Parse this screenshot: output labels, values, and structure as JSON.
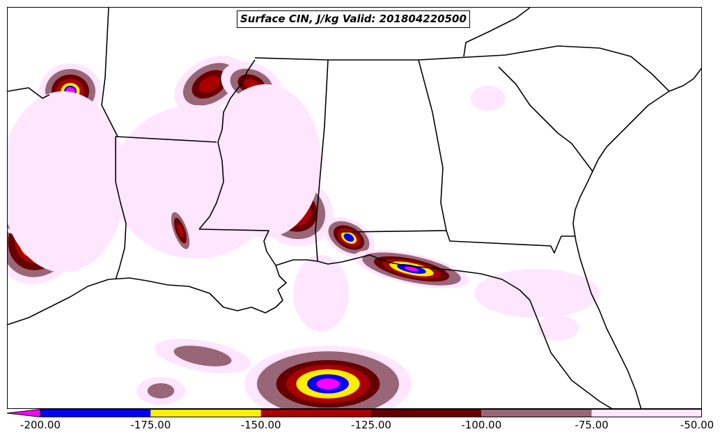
{
  "title": "Surface CIN, J/kg Valid: 201804220500",
  "colorbar": {
    "ticks": [
      "-200.00",
      "-175.00",
      "-150.00",
      "-125.00",
      "-100.00",
      "-75.00",
      "-50.00"
    ],
    "bins": [
      {
        "from": -200,
        "to": -175,
        "color": "#0000ff"
      },
      {
        "from": -175,
        "to": -150,
        "color": "#ffee00"
      },
      {
        "from": -150,
        "to": -125,
        "color": "#aa0000"
      },
      {
        "from": -125,
        "to": -100,
        "color": "#660000"
      },
      {
        "from": -100,
        "to": -75,
        "color": "#996677"
      },
      {
        "from": -75,
        "to": -50,
        "color": "#ffe6ff"
      }
    ],
    "under_color": "#ff00ff"
  },
  "colors": {
    "magenta": "#ff00ff",
    "blue": "#0000ff",
    "yellow": "#ffee00",
    "red": "#aa0000",
    "darkred": "#660000",
    "mauve": "#996677",
    "pink": "#ffe6ff",
    "boundary": "#000000"
  }
}
